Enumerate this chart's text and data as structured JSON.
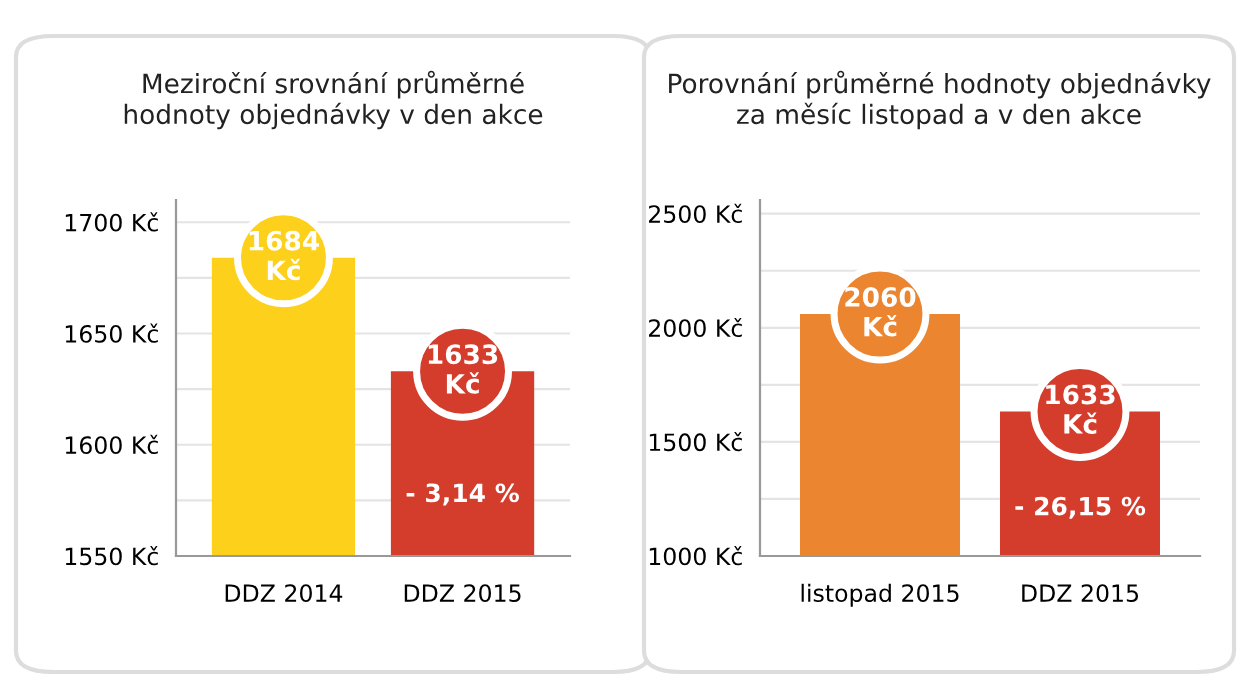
{
  "chart_data": [
    {
      "type": "bar",
      "title": "Meziroční srovnání průměrné\nhodnoty objednávky v den akce",
      "categories": [
        "DDZ 2014",
        "DDZ 2015"
      ],
      "values": [
        1684,
        1633
      ],
      "colors": [
        "#fdd01b",
        "#d43c2c"
      ],
      "value_labels": [
        "1684\nKč",
        "1633\nKč"
      ],
      "annotations": [
        "- 3,14 %"
      ],
      "ylim": [
        1550,
        1710
      ],
      "yticks": [
        {
          "value": 1550,
          "label": "1550 Kč"
        },
        {
          "value": 1575,
          "label": null
        },
        {
          "value": 1600,
          "label": "1600 Kč"
        },
        {
          "value": 1625,
          "label": null
        },
        {
          "value": 1650,
          "label": "1650 Kč"
        },
        {
          "value": 1675,
          "label": null
        },
        {
          "value": 1700,
          "label": "1700 Kč"
        }
      ],
      "grid": "y",
      "legend": false
    },
    {
      "type": "bar",
      "title": "Porovnání průměrné hodnoty objednávky\nza měsíc listopad a v den akce",
      "categories": [
        "listopad 2015",
        "DDZ 2015"
      ],
      "values": [
        2060,
        1633
      ],
      "colors": [
        "#ec8530",
        "#d43c2c"
      ],
      "value_labels": [
        "2060\nKč",
        "1633\nKč"
      ],
      "annotations": [
        "- 26,15 %"
      ],
      "ylim": [
        1000,
        2560
      ],
      "yticks": [
        {
          "value": 1000,
          "label": "1000 Kč"
        },
        {
          "value": 1250,
          "label": null
        },
        {
          "value": 1500,
          "label": "1500 Kč"
        },
        {
          "value": 1750,
          "label": null
        },
        {
          "value": 2000,
          "label": "2000 Kč"
        },
        {
          "value": 2250,
          "label": null
        },
        {
          "value": 2500,
          "label": "2500 Kč"
        }
      ],
      "grid": "y",
      "legend": false
    }
  ]
}
